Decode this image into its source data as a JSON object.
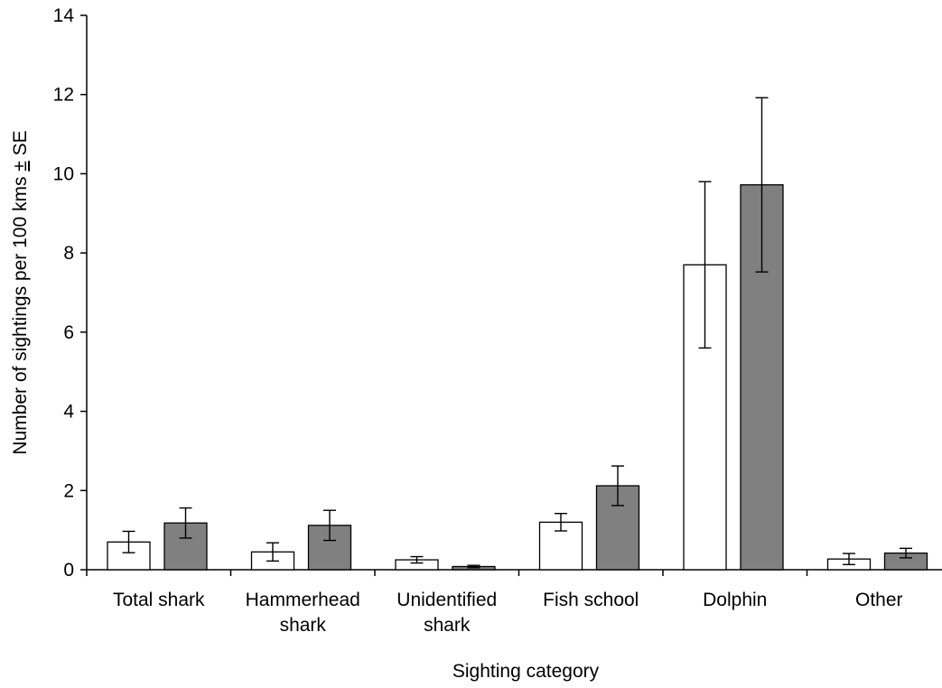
{
  "chart_data": {
    "type": "bar",
    "xlabel": "Sighting category",
    "ylabel": "Number of sightings per 100 kms ± SE",
    "ylim": [
      0,
      14
    ],
    "yticks": [
      0,
      2,
      4,
      6,
      8,
      10,
      12,
      14
    ],
    "categories": [
      [
        "Total shark"
      ],
      [
        "Hammerhead",
        "shark"
      ],
      [
        "Unidentified",
        "shark"
      ],
      [
        "Fish school"
      ],
      [
        "Dolphin"
      ],
      [
        "Other"
      ]
    ],
    "series": [
      {
        "color": "#ffffff",
        "values": [
          0.7,
          0.45,
          0.25,
          1.2,
          7.7,
          0.27
        ],
        "errors": [
          0.27,
          0.23,
          0.08,
          0.22,
          2.1,
          0.14
        ]
      },
      {
        "color": "#808080",
        "values": [
          1.18,
          1.12,
          0.08,
          2.12,
          9.72,
          0.42
        ],
        "errors": [
          0.38,
          0.38,
          0.03,
          0.5,
          2.2,
          0.12
        ]
      }
    ],
    "legend": "none",
    "grid": false
  }
}
